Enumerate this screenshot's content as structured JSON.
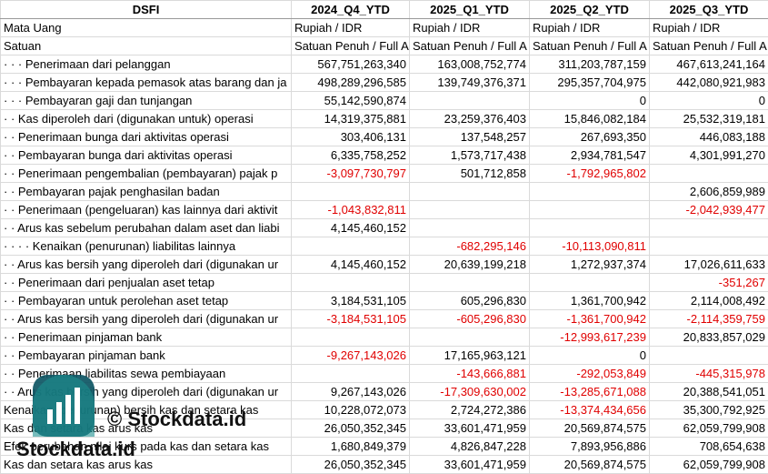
{
  "header": [
    "DSFI",
    "2024_Q4_YTD",
    "2025_Q1_YTD",
    "2025_Q2_YTD",
    "2025_Q3_YTD"
  ],
  "meta_rows": [
    [
      "Mata Uang",
      "Rupiah / IDR",
      "Rupiah / IDR",
      "Rupiah / IDR",
      "Rupiah / IDR"
    ],
    [
      "Satuan",
      "Satuan Penuh / Full A",
      "Satuan Penuh / Full A",
      "Satuan Penuh / Full A",
      "Satuan Penuh / Full A"
    ]
  ],
  "rows": [
    [
      "· · · Penerimaan dari pelanggan",
      "567,751,263,340",
      "163,008,752,774",
      "311,203,787,159",
      "467,613,241,164"
    ],
    [
      "· · · Pembayaran kepada pemasok atas barang dan ja",
      "498,289,296,585",
      "139,749,376,371",
      "295,357,704,975",
      "442,080,921,983"
    ],
    [
      "· · · Pembayaran gaji dan tunjangan",
      "55,142,590,874",
      null,
      "0",
      "0"
    ],
    [
      "· · Kas diperoleh dari (digunakan untuk) operasi",
      "14,319,375,881",
      "23,259,376,403",
      "15,846,082,184",
      "25,532,319,181"
    ],
    [
      "· · Penerimaan bunga dari aktivitas operasi",
      "303,406,131",
      "137,548,257",
      "267,693,350",
      "446,083,188"
    ],
    [
      "· · Pembayaran bunga dari aktivitas operasi",
      "6,335,758,252",
      "1,573,717,438",
      "2,934,781,547",
      "4,301,991,270"
    ],
    [
      "· · Penerimaan pengembalian (pembayaran) pajak p",
      "-3,097,730,797",
      "501,712,858",
      "-1,792,965,802",
      null
    ],
    [
      "· · Pembayaran pajak penghasilan badan",
      null,
      null,
      null,
      "2,606,859,989"
    ],
    [
      "· · Penerimaan (pengeluaran) kas lainnya dari aktivit",
      "-1,043,832,811",
      null,
      null,
      "-2,042,939,477"
    ],
    [
      "· · Arus kas sebelum perubahan dalam aset dan liabi",
      "4,145,460,152",
      null,
      null,
      null
    ],
    [
      "· · · · Kenaikan (penurunan) liabilitas lainnya",
      null,
      "-682,295,146",
      "-10,113,090,811",
      null
    ],
    [
      "· · Arus kas bersih yang diperoleh dari (digunakan ur",
      "4,145,460,152",
      "20,639,199,218",
      "1,272,937,374",
      "17,026,611,633"
    ],
    [
      "· · Penerimaan dari penjualan aset tetap",
      null,
      null,
      null,
      "-351,267"
    ],
    [
      "· · Pembayaran untuk perolehan aset tetap",
      "3,184,531,105",
      "605,296,830",
      "1,361,700,942",
      "2,114,008,492"
    ],
    [
      "· · Arus kas bersih yang diperoleh dari (digunakan ur",
      "-3,184,531,105",
      "-605,296,830",
      "-1,361,700,942",
      "-2,114,359,759"
    ],
    [
      "· · Penerimaan pinjaman bank",
      null,
      null,
      "-12,993,617,239",
      "20,833,857,029"
    ],
    [
      "· · Pembayaran pinjaman bank",
      "-9,267,143,026",
      "17,165,963,121",
      "0",
      null
    ],
    [
      "· · Penerimaan liabilitas sewa pembiayaan",
      null,
      "-143,666,881",
      "-292,053,849",
      "-445,315,978"
    ],
    [
      "· · Arus kas bersih yang diperoleh dari (digunakan ur",
      "9,267,143,026",
      "-17,309,630,002",
      "-13,285,671,088",
      "20,388,541,051"
    ],
    [
      "Kenaikan (penurunan) bersih kas dan setara kas",
      "10,228,072,073",
      "2,724,272,386",
      "-13,374,434,656",
      "35,300,792,925"
    ],
    [
      "Kas dan setara kas arus kas",
      "26,050,352,345",
      "33,601,471,959",
      "20,569,874,575",
      "62,059,799,908"
    ],
    [
      "Efek perubahan nilai kurs pada kas dan setara kas",
      "1,680,849,379",
      "4,826,847,228",
      "7,893,956,886",
      "708,654,638"
    ],
    [
      "Kas dan setara kas arus kas",
      "26,050,352,345",
      "33,601,471,959",
      "20,569,874,575",
      "62,059,799,908"
    ]
  ],
  "watermark": {
    "center_text": "© Stockdata.id",
    "brand_text": "Stockdata.id"
  }
}
